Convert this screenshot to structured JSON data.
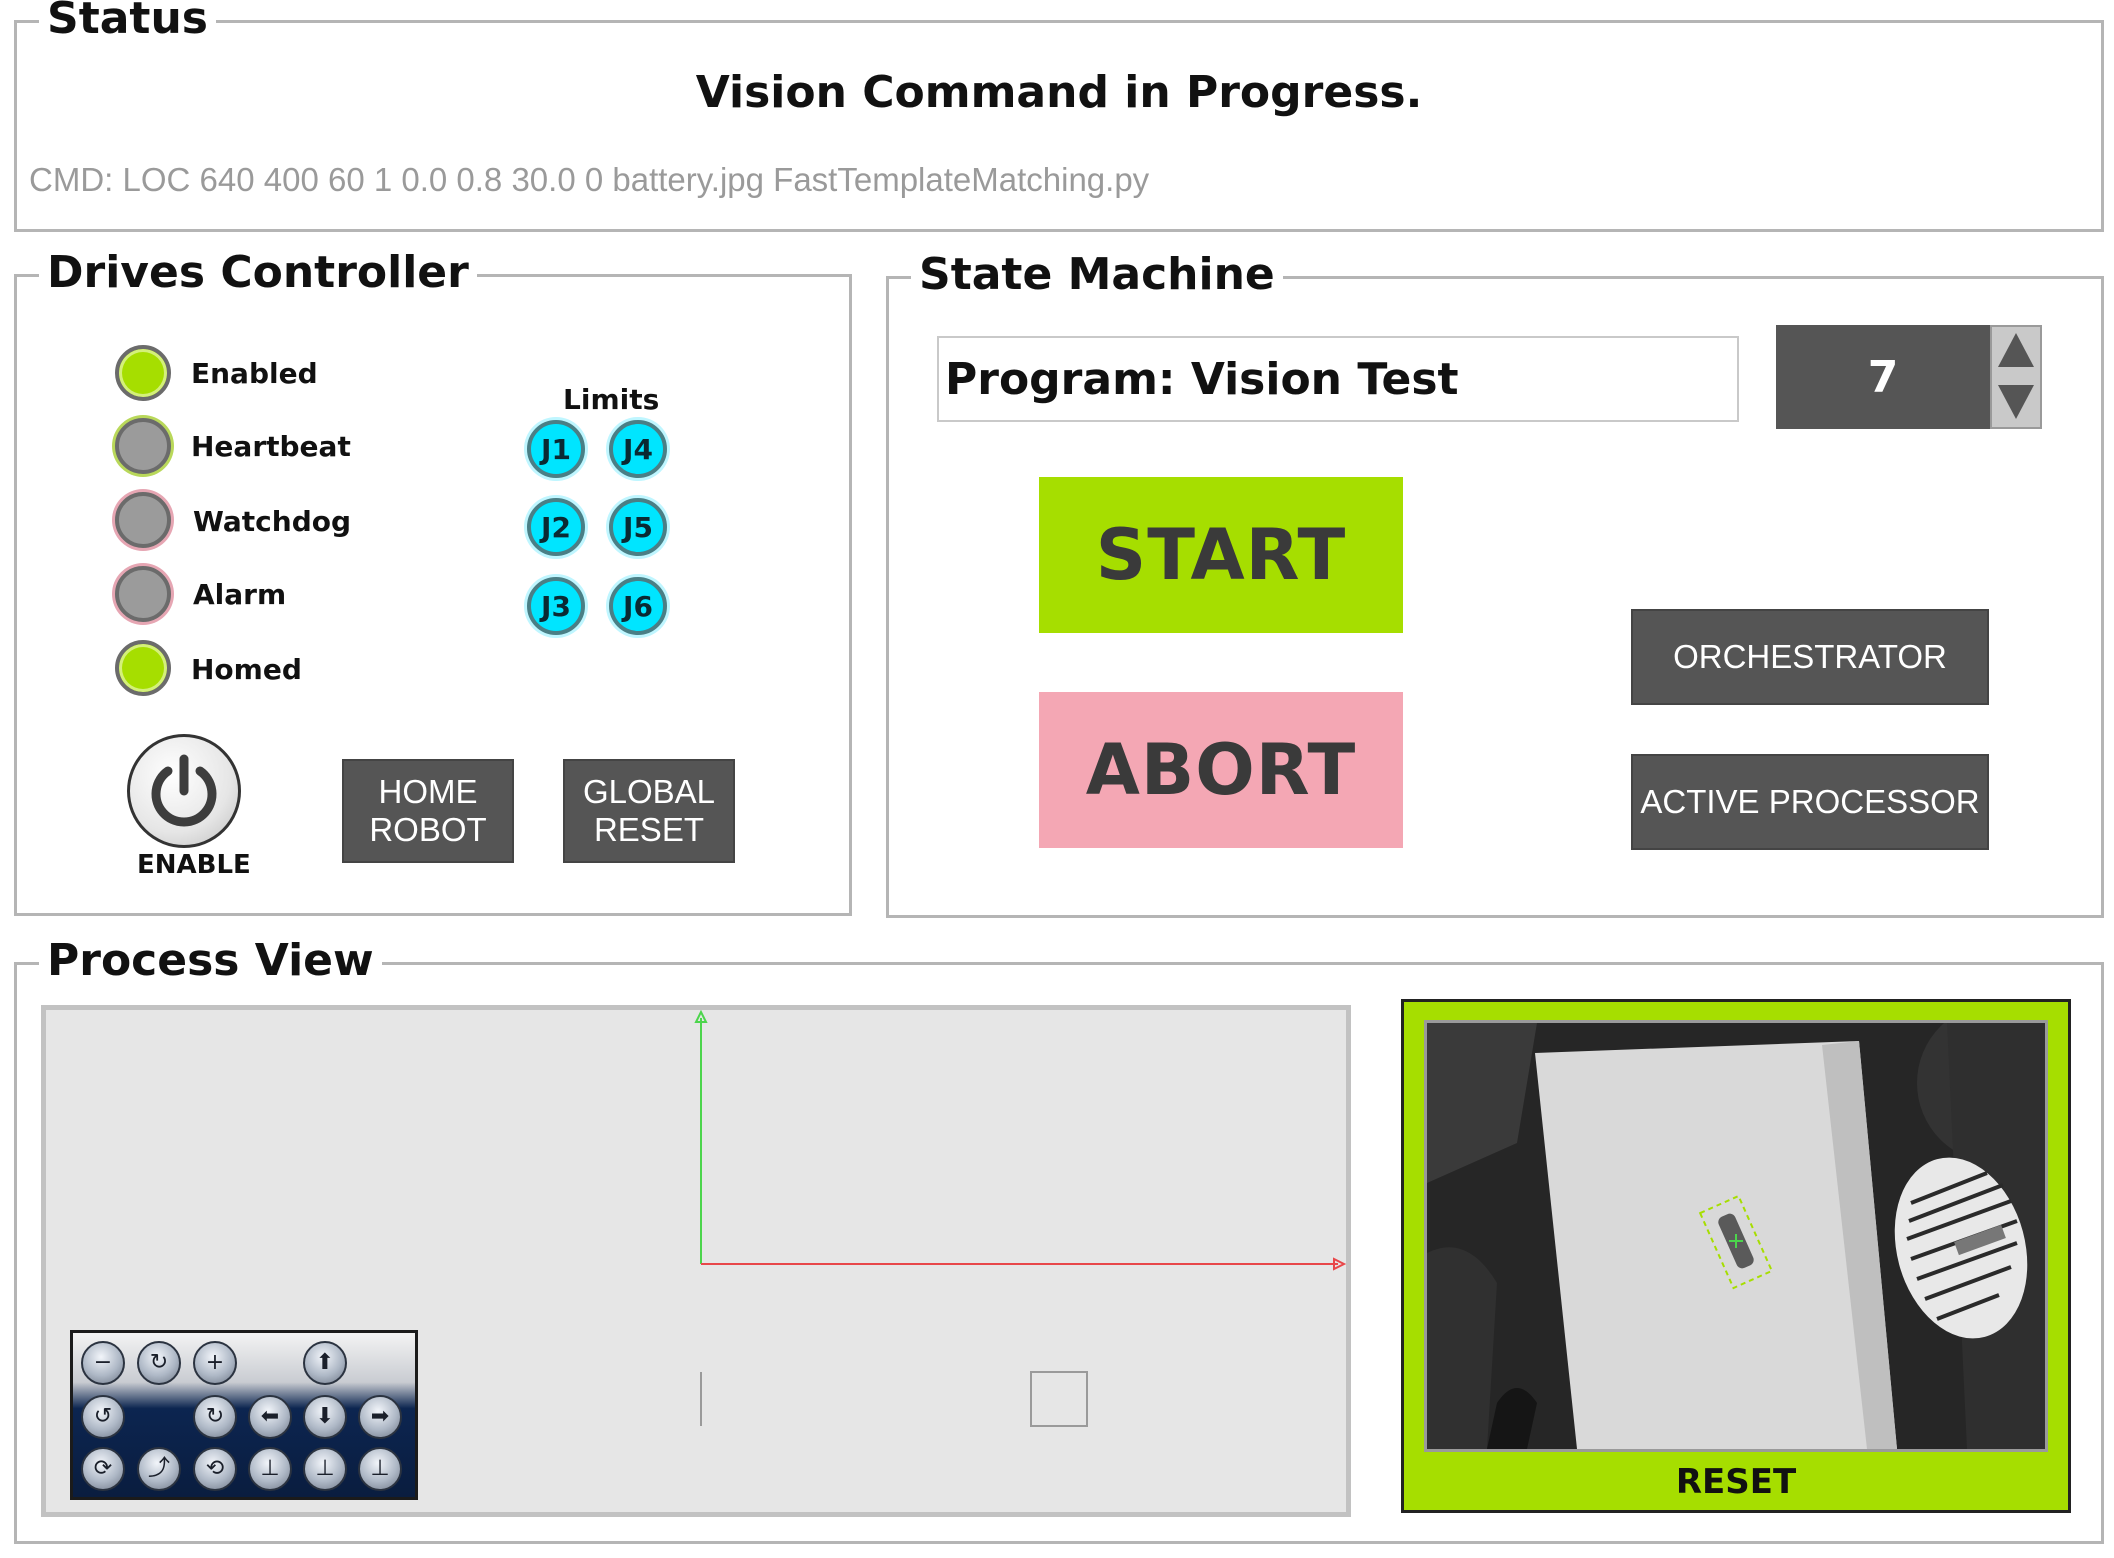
{
  "status": {
    "legend": "Status",
    "message": "Vision Command in Progress.",
    "command": "CMD: LOC 640 400 60 1 0.0 0.8 30.0 0 battery.jpg FastTemplateMatching.py"
  },
  "drives": {
    "legend": "Drives Controller",
    "indicators": [
      {
        "label": "Enabled",
        "state": "on"
      },
      {
        "label": "Heartbeat",
        "state": "off"
      },
      {
        "label": "Watchdog",
        "state": "off"
      },
      {
        "label": "Alarm",
        "state": "off"
      },
      {
        "label": "Homed",
        "state": "on"
      }
    ],
    "limits_label": "Limits",
    "joints": [
      "J1",
      "J4",
      "J2",
      "J5",
      "J3",
      "J6"
    ],
    "enable_label": "ENABLE",
    "home_robot_label": "HOME\nROBOT",
    "global_reset_label": "GLOBAL\nRESET"
  },
  "state_machine": {
    "legend": "State Machine",
    "program": "Program: Vision Test",
    "step": "7",
    "start_label": "START",
    "abort_label": "ABORT",
    "orchestrator_label": "ORCHESTRATOR",
    "active_processor_label": "ACTIVE PROCESSOR"
  },
  "process_view": {
    "legend": "Process View",
    "reset_label": "RESET"
  },
  "colors": {
    "accent_green": "#a6de00",
    "abort_pink": "#f4a7b4",
    "dark_button": "#555555",
    "limit_cyan": "#00e5ff",
    "axis_x": "#e8474a",
    "axis_y": "#4cd54c"
  }
}
